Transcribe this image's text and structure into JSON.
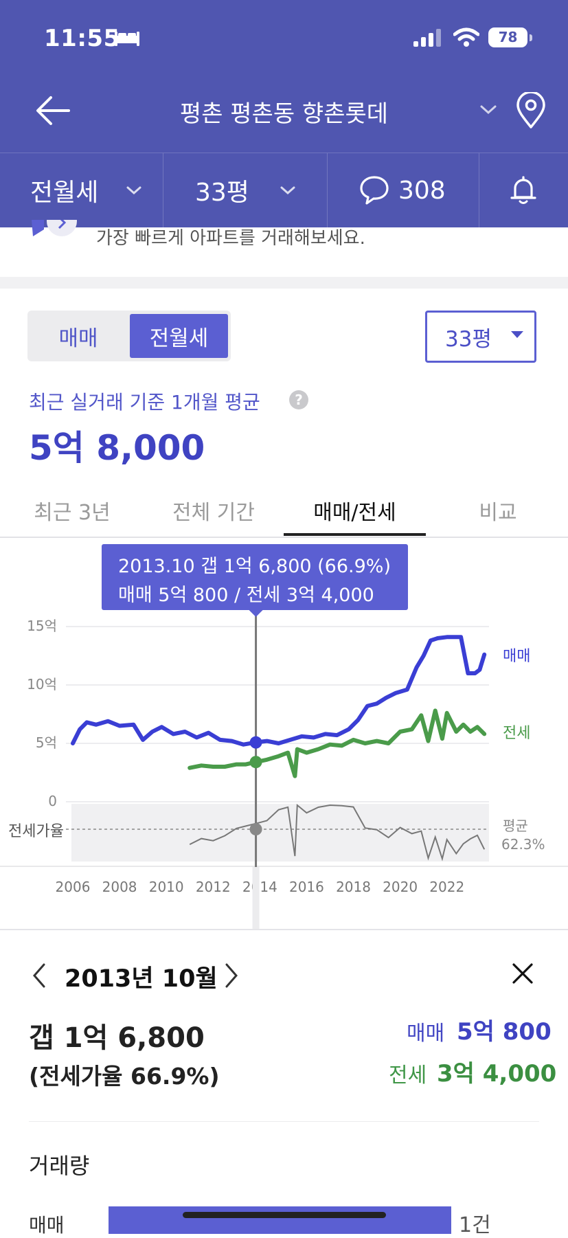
{
  "status": {
    "time": "11:55",
    "battery": "78"
  },
  "header": {
    "title": "평촌 평촌동 향촌롯데",
    "icons": [
      "back-arrow-icon",
      "chevron-down-icon",
      "location-pin-icon"
    ]
  },
  "subnav": {
    "deal_type": "전월세",
    "size": "33평",
    "comments": "308",
    "icons": [
      "chat-bubble-icon",
      "bell-icon"
    ]
  },
  "notice": {
    "text": "가장 빠르게 아파트를 거래해보세요."
  },
  "toggle": {
    "sale": "매매",
    "rent": "전월세",
    "selected": "전월세"
  },
  "size_select": {
    "value": "33평"
  },
  "summary": {
    "label": "최근 실거래 기준 1개월 평균",
    "help": "?",
    "price": "5억 8,000"
  },
  "tabs": [
    {
      "label": "최근 3년",
      "active": false
    },
    {
      "label": "전체 기간",
      "active": false
    },
    {
      "label": "매매/전세",
      "active": true
    },
    {
      "label": "비교",
      "active": false
    }
  ],
  "tooltip": {
    "line1": "2013.10  갭 1억 6,800 (66.9%)",
    "line2": "매매 5억 800 / 전세 3억 4,000"
  },
  "chart_data": {
    "type": "line",
    "x_unit": "year",
    "ylim": [
      0,
      15
    ],
    "y_unit": "억",
    "ytick_labels": [
      "15억",
      "10억",
      "5억",
      "0"
    ],
    "xtick_labels": [
      "2006",
      "2008",
      "2010",
      "2012",
      "2014",
      "2016",
      "2018",
      "2020",
      "2022"
    ],
    "xlim": [
      2006,
      2023.8
    ],
    "series": [
      {
        "name": "매매",
        "color": "#3a3ed4",
        "points": [
          [
            2006.0,
            5.0
          ],
          [
            2006.3,
            6.2
          ],
          [
            2006.6,
            6.8
          ],
          [
            2007.0,
            6.6
          ],
          [
            2007.5,
            6.9
          ],
          [
            2008.0,
            6.5
          ],
          [
            2008.6,
            6.6
          ],
          [
            2009.0,
            5.3
          ],
          [
            2009.4,
            6.0
          ],
          [
            2009.8,
            6.4
          ],
          [
            2010.3,
            5.8
          ],
          [
            2010.8,
            6.0
          ],
          [
            2011.3,
            5.5
          ],
          [
            2011.8,
            5.9
          ],
          [
            2012.3,
            5.3
          ],
          [
            2012.8,
            5.2
          ],
          [
            2013.3,
            4.9
          ],
          [
            2013.83,
            5.08
          ],
          [
            2014.3,
            5.2
          ],
          [
            2014.8,
            5.0
          ],
          [
            2015.3,
            5.3
          ],
          [
            2015.8,
            5.6
          ],
          [
            2016.3,
            5.5
          ],
          [
            2016.8,
            5.8
          ],
          [
            2017.3,
            5.7
          ],
          [
            2017.8,
            6.2
          ],
          [
            2018.2,
            7.0
          ],
          [
            2018.6,
            8.2
          ],
          [
            2019.0,
            8.4
          ],
          [
            2019.4,
            8.9
          ],
          [
            2019.8,
            9.3
          ],
          [
            2020.3,
            9.6
          ],
          [
            2020.7,
            11.5
          ],
          [
            2021.0,
            12.5
          ],
          [
            2021.3,
            13.8
          ],
          [
            2021.6,
            14.0
          ],
          [
            2022.0,
            14.1
          ],
          [
            2022.6,
            14.1
          ],
          [
            2022.9,
            11.0
          ],
          [
            2023.2,
            11.0
          ],
          [
            2023.4,
            11.3
          ],
          [
            2023.6,
            12.6
          ]
        ]
      },
      {
        "name": "전세",
        "color": "#4a9b4a",
        "points": [
          [
            2011.0,
            2.9
          ],
          [
            2011.5,
            3.1
          ],
          [
            2012.0,
            3.0
          ],
          [
            2012.5,
            3.0
          ],
          [
            2013.0,
            3.2
          ],
          [
            2013.4,
            3.2
          ],
          [
            2013.83,
            3.4
          ],
          [
            2014.3,
            3.6
          ],
          [
            2014.8,
            3.9
          ],
          [
            2015.2,
            4.2
          ],
          [
            2015.5,
            2.2
          ],
          [
            2015.6,
            4.5
          ],
          [
            2016.0,
            4.2
          ],
          [
            2016.5,
            4.5
          ],
          [
            2017.0,
            4.9
          ],
          [
            2017.5,
            4.8
          ],
          [
            2018.0,
            5.3
          ],
          [
            2018.5,
            5.0
          ],
          [
            2019.0,
            5.2
          ],
          [
            2019.5,
            5.0
          ],
          [
            2020.0,
            6.0
          ],
          [
            2020.5,
            6.2
          ],
          [
            2020.9,
            7.4
          ],
          [
            2021.2,
            5.2
          ],
          [
            2021.5,
            7.8
          ],
          [
            2021.8,
            5.4
          ],
          [
            2022.0,
            7.6
          ],
          [
            2022.4,
            6.0
          ],
          [
            2022.7,
            6.6
          ],
          [
            2023.0,
            6.0
          ],
          [
            2023.3,
            6.4
          ],
          [
            2023.6,
            5.8
          ]
        ]
      }
    ],
    "ratio_series": {
      "name": "전세가율",
      "label": "전세가율",
      "average_label": "평균",
      "average_value": "62.3%",
      "marker_x": 2013.83
    },
    "legend": [
      "매매",
      "전세"
    ],
    "selected_x": 2013.83
  },
  "detail": {
    "date": "2013년 10월",
    "gap": "갭 1억 6,800",
    "ratio": "(전세가율 66.9%)",
    "sale_label": "매매",
    "sale_value": "5억 800",
    "rent_label": "전세",
    "rent_value": "3억 4,000"
  },
  "volume": {
    "title": "거래량",
    "sale_label": "매매",
    "sale_count": "1건",
    "sale_fraction": 1.0
  },
  "colors": {
    "header": "#5056b0",
    "accent": "#5b5fd2",
    "sale": "#3a3ed4",
    "rent": "#4a9b4a"
  }
}
